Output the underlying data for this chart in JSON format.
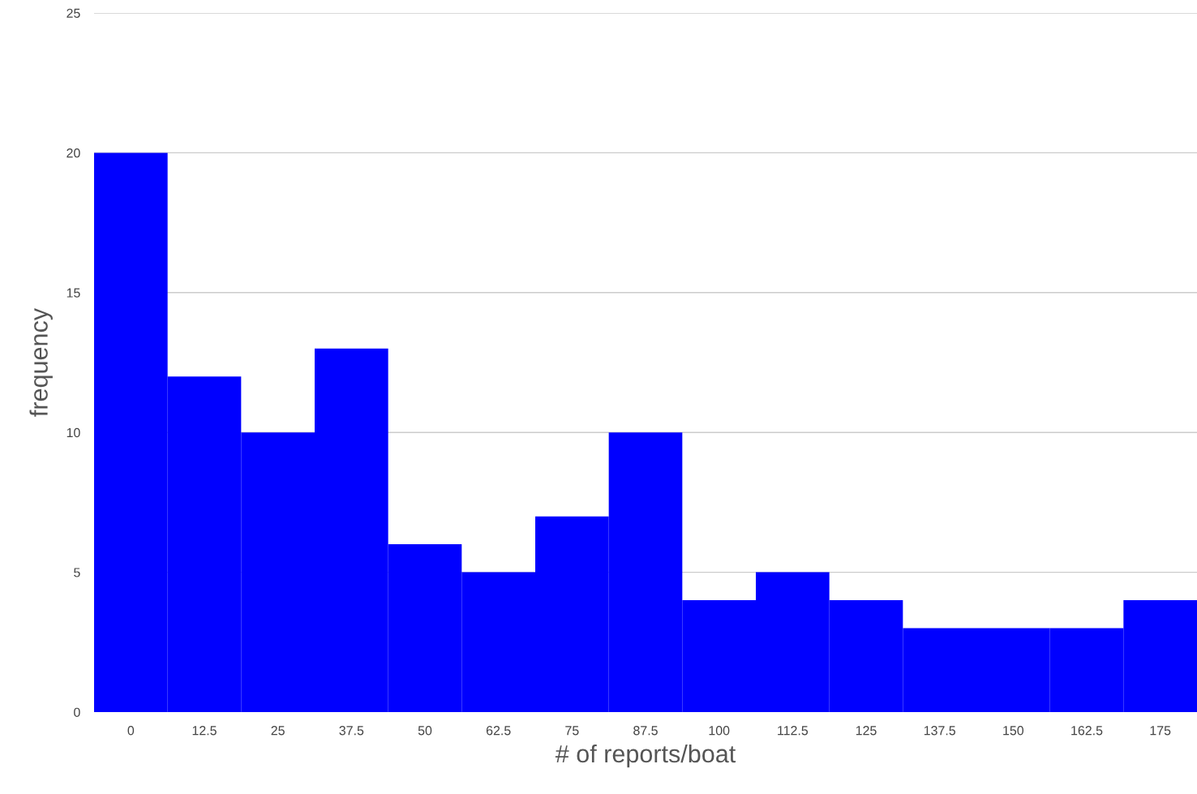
{
  "chart_data": {
    "type": "histogram",
    "xlabel": "# of reports/boat",
    "ylabel": "frequency",
    "bins": [
      -6.25,
      6.25,
      18.75,
      31.25,
      43.75,
      56.25,
      68.75,
      81.25,
      93.75,
      106.25,
      118.75,
      131.25,
      143.75,
      156.25,
      168.75,
      181.25
    ],
    "values": [
      20,
      12,
      10,
      13,
      6,
      5,
      7,
      10,
      4,
      5,
      4,
      3,
      3,
      3,
      4
    ],
    "color": "#0000ff",
    "xlim": [
      -6.25,
      181.25
    ],
    "xticks": [
      0,
      12.5,
      25,
      37.5,
      50,
      62.5,
      75,
      87.5,
      100,
      112.5,
      125,
      137.5,
      150,
      162.5,
      175
    ],
    "ylim": [
      0,
      25
    ],
    "yticks": [
      0,
      5,
      10,
      15,
      20,
      25
    ],
    "grid": "y"
  }
}
